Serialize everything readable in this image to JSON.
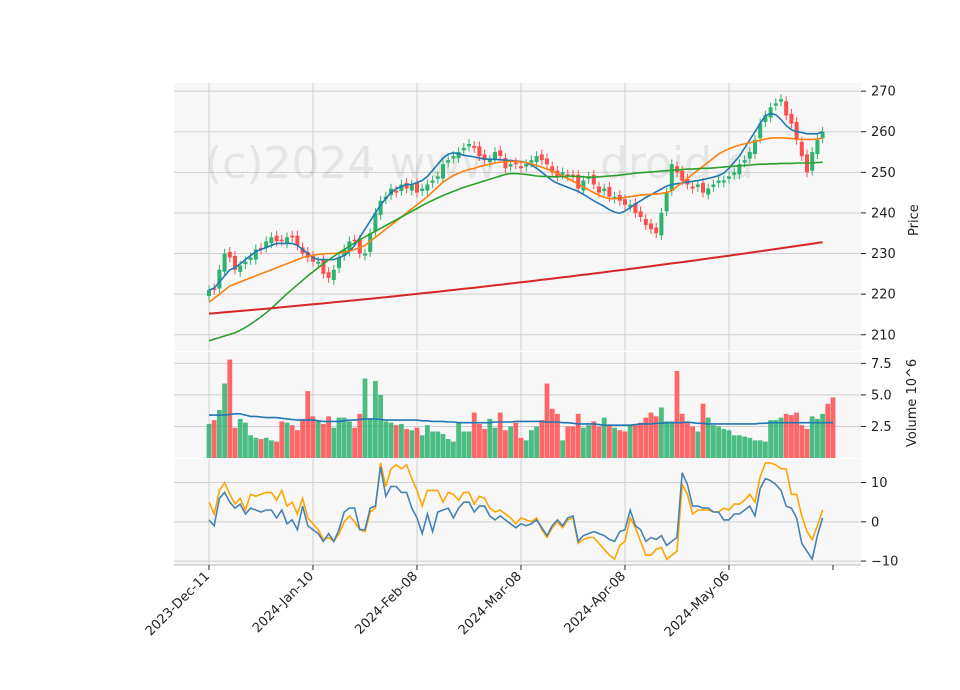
{
  "chart_data": {
    "type": "candlestick",
    "watermark": "(c)2024 www.",
    "watermark_tail": "droid.d",
    "x_tick_labels": [
      "2023-Dec-11",
      "2024-Jan-10",
      "2024-Feb-08",
      "2024-Mar-08",
      "2024-Apr-08",
      "2024-May-06"
    ],
    "x_tick_index": [
      0,
      20,
      40,
      60,
      80,
      100
    ],
    "n_bars": 119,
    "colors": {
      "up": "#2db36f",
      "down": "#ff4d4d",
      "ma_short": "#1f77b4",
      "ma_mid": "#ff7f0e",
      "ma_long": "#2ca02c",
      "ma_200": "#d62728",
      "volume_ma": "#1f77b4",
      "osc_fast": "#4682b4",
      "osc_slow": "#ffa500"
    },
    "price_panel": {
      "ylabel": "Price",
      "ylim": [
        206,
        272
      ],
      "yticks": [
        210,
        220,
        230,
        240,
        250,
        260,
        270
      ],
      "close": [
        221,
        221,
        226,
        230,
        229,
        226,
        227,
        228,
        229,
        231,
        231,
        233,
        234,
        233,
        233,
        234,
        234,
        232,
        230,
        229,
        228,
        228,
        225,
        224,
        226,
        229,
        231,
        233,
        233,
        230,
        230,
        235,
        240,
        243,
        244,
        246,
        245,
        247,
        246,
        247,
        245,
        246,
        247,
        248,
        249,
        252,
        253,
        254,
        255,
        256,
        257,
        256,
        254,
        253,
        253,
        255,
        254,
        251,
        252,
        252,
        251,
        252,
        253,
        254,
        253,
        252,
        250,
        249,
        250,
        249,
        249,
        246,
        248,
        249,
        247,
        245,
        246,
        244,
        244,
        243,
        242,
        242,
        240,
        239,
        237,
        236,
        235,
        240,
        245,
        252,
        250,
        248,
        247,
        246,
        247,
        245,
        246,
        247,
        248,
        248,
        249,
        250,
        252,
        253,
        255,
        258,
        262,
        264,
        266,
        267,
        268,
        264,
        262,
        258,
        254,
        250,
        255,
        258,
        260
      ],
      "ma_short": [
        221,
        221.5,
        223,
        224.5,
        226,
        226.5,
        227.5,
        228.5,
        229.5,
        230.5,
        231,
        231.5,
        232,
        232.5,
        232.5,
        232.5,
        232.5,
        232,
        231,
        230,
        229,
        228.5,
        228.5,
        228.5,
        228.5,
        229,
        229.5,
        230.5,
        232,
        234,
        236,
        238,
        240,
        242,
        243.5,
        245,
        246,
        246.5,
        247,
        247,
        247.5,
        248,
        249,
        250.5,
        252,
        253.5,
        254.5,
        254.8,
        254.6,
        254.2,
        254,
        253.8,
        253.5,
        253.3,
        253.2,
        253.2,
        253.1,
        253,
        252.9,
        252.8,
        252.7,
        252.3,
        251.8,
        251,
        250,
        249,
        248,
        247.3,
        246.8,
        246.3,
        245.8,
        245.3,
        244.6,
        243.8,
        243,
        242.3,
        241.6,
        240.8,
        240.2,
        239.9,
        240.5,
        241.3,
        242.2,
        243,
        243.8,
        244.5,
        245.2,
        245.9,
        246.6,
        247,
        247.2,
        247.4,
        247.6,
        247.8,
        248,
        248.2,
        248.5,
        248.8,
        249.2,
        249.8,
        251,
        252.5,
        254,
        256,
        258,
        260,
        262,
        264,
        264.5,
        264.2,
        263,
        261.5,
        260.5,
        260,
        259.8,
        259.5,
        259.5,
        259.5,
        260
      ],
      "ma_mid": [
        218,
        219,
        220,
        221,
        222,
        222.5,
        223,
        223.5,
        224,
        224.5,
        225,
        225.5,
        226,
        226.5,
        227,
        227.5,
        228,
        228.5,
        229,
        229.3,
        229.6,
        229.8,
        229.9,
        230,
        230,
        230.1,
        230.3,
        230.6,
        231,
        231.5,
        232,
        233,
        234,
        235,
        236,
        237,
        238,
        239,
        240,
        241,
        242,
        243,
        244,
        245.2,
        246.4,
        247.6,
        248.4,
        249.2,
        249.8,
        250.3,
        250.7,
        251,
        251.4,
        251.7,
        252,
        252.3,
        252.5,
        252.6,
        252.7,
        252.7,
        252.6,
        252.4,
        252.1,
        251.7,
        251.3,
        250.8,
        250.3,
        249.7,
        249.1,
        248.5,
        247.8,
        247.1,
        246.4,
        245.7,
        245,
        244.4,
        243.9,
        243.5,
        243.5,
        243.6,
        243.8,
        244,
        244.2,
        244.4,
        244.5,
        244.6,
        244.7,
        244.8,
        245,
        245.5,
        246.5,
        247.5,
        248.5,
        249.5,
        250.5,
        251.5,
        252.5,
        253.5,
        254.5,
        255.2,
        255.8,
        256.3,
        256.7,
        257,
        257.3,
        257.6,
        257.9,
        258.2,
        258.4,
        258.5,
        258.5,
        258.4,
        258.3,
        258.2,
        258.1,
        258.1,
        258.1,
        258.2,
        258.4
      ],
      "ma_long": [
        208.5,
        208.9,
        209.3,
        209.7,
        210.1,
        210.5,
        211.1,
        211.8,
        212.6,
        213.5,
        214.4,
        215.4,
        216.5,
        217.7,
        218.9,
        220.1,
        221.2,
        222.3,
        223.4,
        224.5,
        225.5,
        226.5,
        227.5,
        228.4,
        229.3,
        230.2,
        231,
        231.8,
        232.6,
        233.4,
        234.1,
        234.8,
        235.5,
        236.2,
        236.9,
        237.6,
        238.3,
        239,
        239.7,
        240.4,
        241.1,
        241.8,
        242.5,
        243.1,
        243.7,
        244.3,
        244.8,
        245.3,
        245.8,
        246.3,
        246.7,
        247.1,
        247.5,
        247.9,
        248.3,
        248.7,
        249.1,
        249.5,
        249.7,
        249.7,
        249.6,
        249.5,
        249.3,
        249.1,
        249,
        249,
        248.9,
        248.9,
        249,
        249.1,
        249,
        249,
        248.9,
        248.8,
        248.8,
        248.9,
        249,
        249.1,
        249.2,
        249.3,
        249.5,
        249.6,
        249.8,
        249.9,
        250,
        250.1,
        250.2,
        250.3,
        250.4,
        250.5,
        250.6,
        250.7,
        250.8,
        250.8,
        250.9,
        251,
        251,
        251.1,
        251.2,
        251.3,
        251.4,
        251.5,
        251.6,
        251.7,
        251.8,
        251.9,
        252,
        252,
        252.1,
        252.1,
        252.2,
        252.2,
        252.2,
        252.3,
        252.3,
        252.3,
        252.3,
        252.4,
        252.5
      ],
      "ma_200_start": 215.2,
      "ma_200_end": 232.8
    },
    "volume_panel": {
      "ylabel": "Volume  10^6",
      "ylim": [
        0,
        8.4
      ],
      "yticks": [
        2.5,
        5.0,
        7.5
      ],
      "values": [
        2.7,
        3.0,
        3.8,
        5.9,
        7.8,
        2.4,
        3.1,
        2.8,
        1.8,
        1.6,
        1.5,
        1.6,
        1.4,
        1.3,
        2.9,
        2.8,
        2.6,
        2.2,
        3.1,
        5.3,
        3.3,
        2.9,
        2.7,
        3.3,
        2.4,
        3.2,
        3.2,
        2.9,
        2.4,
        3.5,
        6.3,
        3.1,
        6.1,
        5.0,
        2.9,
        2.8,
        2.6,
        2.7,
        2.3,
        2.2,
        2.4,
        1.8,
        2.6,
        2.1,
        2.1,
        1.9,
        1.5,
        1.3,
        2.8,
        2.1,
        2.1,
        3.6,
        2.7,
        2.3,
        3.1,
        2.4,
        3.6,
        2.2,
        2.5,
        2.8,
        1.6,
        1.4,
        2.2,
        2.5,
        3.0,
        5.9,
        3.9,
        3.5,
        1.4,
        2.5,
        2.5,
        3.5,
        2.4,
        2.6,
        2.9,
        2.5,
        3.2,
        2.6,
        2.4,
        2.2,
        2.1,
        2.6,
        2.6,
        2.8,
        3.2,
        3.6,
        3.3,
        4.0,
        2.9,
        2.9,
        6.9,
        3.5,
        2.8,
        2.5,
        2.1,
        4.3,
        3.2,
        2.6,
        2.5,
        2.3,
        2.2,
        1.8,
        1.8,
        1.7,
        1.6,
        1.4,
        1.4,
        1.3,
        3.0,
        3.0,
        3.2,
        3.5,
        3.4,
        3.6,
        2.6,
        2.3,
        3.3,
        3.1,
        3.5,
        4.3,
        4.8
      ],
      "ma": [
        3.4,
        3.4,
        3.4,
        3.4,
        3.45,
        3.5,
        3.5,
        3.4,
        3.3,
        3.3,
        3.25,
        3.2,
        3.2,
        3.2,
        3.15,
        3.1,
        3.05,
        3.0,
        3.0,
        3.0,
        3.0,
        2.95,
        2.9,
        2.9,
        2.9,
        2.9,
        2.95,
        3.0,
        3.0,
        3.05,
        3.1,
        3.1,
        3.1,
        3.05,
        3.0,
        3.0,
        3.0,
        3.0,
        3.0,
        3.0,
        3.0,
        2.95,
        2.95,
        2.9,
        2.9,
        2.9,
        2.85,
        2.85,
        2.8,
        2.8,
        2.8,
        2.8,
        2.8,
        2.8,
        2.8,
        2.85,
        2.85,
        2.85,
        2.85,
        2.9,
        2.9,
        2.9,
        2.9,
        2.9,
        2.9,
        2.85,
        2.85,
        2.85,
        2.8,
        2.8,
        2.75,
        2.7,
        2.7,
        2.7,
        2.7,
        2.65,
        2.6,
        2.6,
        2.6,
        2.6,
        2.6,
        2.6,
        2.65,
        2.7,
        2.7,
        2.7,
        2.75,
        2.75,
        2.8,
        2.8,
        2.8,
        2.8,
        2.85,
        2.8,
        2.75,
        2.75,
        2.7,
        2.7,
        2.7,
        2.7,
        2.7,
        2.7,
        2.7,
        2.7,
        2.7,
        2.7,
        2.75,
        2.75,
        2.8,
        2.8,
        2.8,
        2.8,
        2.8,
        2.8,
        2.8,
        2.8,
        2.8,
        2.8,
        2.8,
        2.8,
        2.8
      ]
    },
    "oscillator_panel": {
      "ylim": [
        -11,
        16
      ],
      "yticks": [
        -10,
        0,
        10
      ],
      "fast": [
        0.5,
        -1,
        6,
        7.5,
        5,
        3.5,
        4.5,
        2,
        3.5,
        3,
        2.5,
        3,
        3,
        1,
        3,
        -0.5,
        0.5,
        -2,
        4,
        -1,
        -2,
        -3,
        -5,
        -3,
        -5,
        -2,
        2.5,
        3.5,
        3.5,
        -2,
        -2,
        3.5,
        4,
        14,
        6.5,
        9,
        9,
        7.5,
        7.5,
        3.5,
        1,
        -3,
        2,
        -2.5,
        2.5,
        3,
        3.5,
        1,
        3.5,
        5,
        5,
        2.5,
        4,
        4,
        1.5,
        0.5,
        1.5,
        0.5,
        -0.5,
        -1.5,
        -0.5,
        -1,
        -0.5,
        0.5,
        -1.5,
        -3.5,
        -1,
        0.5,
        -1,
        1,
        1.5,
        -5,
        -3.5,
        -3,
        -2.5,
        -3,
        -3.5,
        -4.5,
        -5,
        -2.5,
        -2,
        3,
        -1,
        -2,
        -5,
        -4,
        -4.5,
        -3.5,
        -6,
        -5,
        -4,
        12.5,
        9.5,
        4,
        4,
        3.5,
        3.5,
        2.5,
        2.5,
        0.5,
        0.5,
        2,
        2,
        3,
        4,
        1.5,
        8.5,
        11,
        10.5,
        9.5,
        8,
        4,
        3.5,
        1,
        -5.5,
        -7.5,
        -9.5,
        -3.5,
        1
      ],
      "slow": [
        5,
        2,
        8,
        10,
        7,
        4.5,
        6,
        3,
        7,
        6.5,
        7,
        7.5,
        7.5,
        5.5,
        8,
        4,
        5,
        2,
        6,
        1,
        -0.5,
        -2,
        -4.5,
        -4,
        -5,
        -3,
        0,
        1.5,
        0,
        -2,
        -2.5,
        2.5,
        3.5,
        15,
        9,
        13.5,
        14.5,
        13.5,
        14.5,
        11,
        8,
        4,
        8,
        8,
        8,
        5,
        7.5,
        7,
        5.5,
        7.5,
        7.5,
        4.5,
        6.5,
        6,
        3.5,
        2.5,
        3,
        2,
        1,
        -0.5,
        1,
        0.5,
        0,
        1,
        -2,
        -4,
        -1.5,
        0,
        -1.5,
        0.5,
        1,
        -5.5,
        -4.5,
        -4,
        -4,
        -5.5,
        -7,
        -8.5,
        -9.5,
        -6,
        -5,
        1,
        -1.5,
        -5,
        -8.5,
        -8.5,
        -7,
        -6.5,
        -9.5,
        -8.5,
        -7.5,
        9.5,
        7,
        2,
        3,
        3,
        3,
        2.5,
        2.5,
        3.5,
        3,
        4.5,
        4.5,
        5.5,
        7,
        5,
        11.5,
        15,
        15,
        14.5,
        13.5,
        13.5,
        7,
        7,
        1.5,
        -2.5,
        -4.5,
        -1,
        3
      ]
    }
  }
}
